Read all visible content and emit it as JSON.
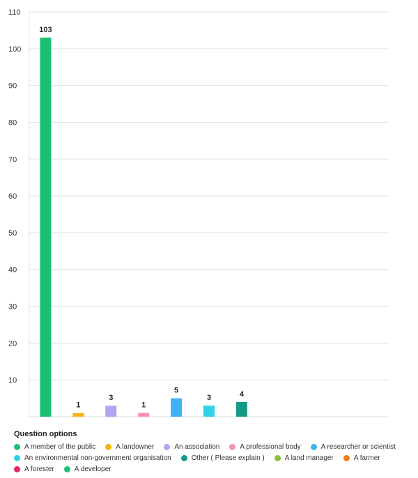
{
  "chart_data": {
    "type": "bar",
    "categories": [
      "A member of the public",
      "A landowner",
      "An association",
      "A professional body",
      "A researcher or scientist",
      "An environmental non-government organisation",
      "Other ( Please explain )",
      "A land manager",
      "A farmer",
      "A forester",
      "A developer"
    ],
    "values": [
      103,
      1,
      3,
      1,
      5,
      3,
      4,
      0,
      0,
      0,
      0
    ],
    "data_labels": [
      "103",
      "1",
      "3",
      "1",
      "5",
      "3",
      "4",
      null,
      null,
      null,
      null
    ],
    "colors": [
      "#1bbf73",
      "#f5b50c",
      "#b3a5f0",
      "#f590b8",
      "#42b0f5",
      "#2dd4e6",
      "#159a86",
      "#8cc43a",
      "#f07d1c",
      "#e8255f",
      "#1bbf73"
    ],
    "ylim": [
      0,
      110
    ],
    "yticks": [
      10,
      20,
      30,
      40,
      50,
      60,
      70,
      80,
      90,
      100,
      110
    ],
    "grid": true,
    "legend_title": "Question options",
    "legend_position": "bottom"
  }
}
